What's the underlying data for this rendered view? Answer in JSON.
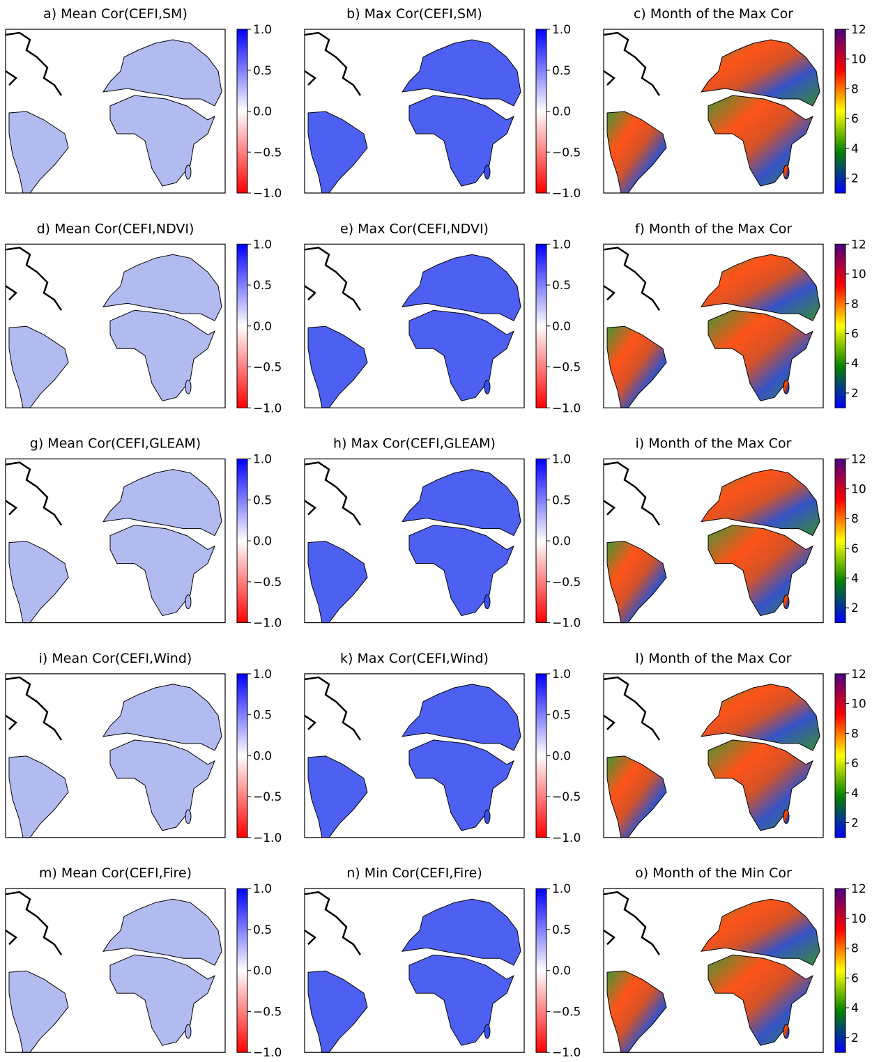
{
  "panels": [
    {
      "title": "a) Mean Cor(CEFI,SM)",
      "colorbar": {
        "clim": [
          -1,
          1
        ],
        "colors": [
          "#ff0000",
          "#ffffff",
          "#0000ff"
        ],
        "ticks": [
          {
            "value": -1,
            "label": "−1.0"
          },
          {
            "value": -0.5,
            "label": "−0.5"
          },
          {
            "value": 0,
            "label": "0.0"
          },
          {
            "value": 0.5,
            "label": "0.5"
          },
          {
            "value": 1,
            "label": "1.0"
          }
        ]
      }
    },
    {
      "title": "b) Max Cor(CEFI,SM)",
      "colorbar": {
        "clim": [
          -1,
          1
        ],
        "colors": [
          "#ff0000",
          "#ffffff",
          "#0000ff"
        ],
        "ticks": [
          {
            "value": -1,
            "label": "−1.0"
          },
          {
            "value": -0.5,
            "label": "−0.5"
          },
          {
            "value": 0,
            "label": "0.0"
          },
          {
            "value": 0.5,
            "label": "0.5"
          },
          {
            "value": 1,
            "label": "1.0"
          }
        ]
      }
    },
    {
      "title": "c) Month of the Max Cor",
      "colorbar": {
        "clim": [
          1,
          12
        ],
        "colors": [
          "#0000ff",
          "#008000",
          "#ffff00",
          "#ff0000",
          "#4b0082"
        ],
        "ticks": [
          2,
          4,
          6,
          8,
          10,
          12
        ]
      }
    },
    {
      "title": "d) Mean Cor(CEFI,NDVI)",
      "colorbar": {
        "clim": [
          -1,
          1
        ],
        "colors": [
          "#ff0000",
          "#ffffff",
          "#0000ff"
        ],
        "ticks": [
          {
            "value": -1,
            "label": "−1.0"
          },
          {
            "value": -0.5,
            "label": "−0.5"
          },
          {
            "value": 0,
            "label": "0.0"
          },
          {
            "value": 0.5,
            "label": "0.5"
          },
          {
            "value": 1,
            "label": "1.0"
          }
        ]
      }
    },
    {
      "title": "e) Max Cor(CEFI,NDVI)",
      "colorbar": {
        "clim": [
          -1,
          1
        ],
        "colors": [
          "#ff0000",
          "#ffffff",
          "#0000ff"
        ],
        "ticks": [
          {
            "value": -1,
            "label": "−1.0"
          },
          {
            "value": -0.5,
            "label": "−0.5"
          },
          {
            "value": 0,
            "label": "0.0"
          },
          {
            "value": 0.5,
            "label": "0.5"
          },
          {
            "value": 1,
            "label": "1.0"
          }
        ]
      }
    },
    {
      "title": "f) Month of the Max Cor",
      "colorbar": {
        "clim": [
          1,
          12
        ],
        "colors": [
          "#0000ff",
          "#008000",
          "#ffff00",
          "#ff0000",
          "#4b0082"
        ],
        "ticks": [
          2,
          4,
          6,
          8,
          10,
          12
        ]
      }
    },
    {
      "title": "g) Mean Cor(CEFI,GLEAM)",
      "colorbar": {
        "clim": [
          -1,
          1
        ],
        "colors": [
          "#ff0000",
          "#ffffff",
          "#0000ff"
        ],
        "ticks": [
          {
            "value": -1,
            "label": "−1.0"
          },
          {
            "value": -0.5,
            "label": "−0.5"
          },
          {
            "value": 0,
            "label": "0.0"
          },
          {
            "value": 0.5,
            "label": "0.5"
          },
          {
            "value": 1,
            "label": "1.0"
          }
        ]
      }
    },
    {
      "title": "h) Max Cor(CEFI,GLEAM)",
      "colorbar": {
        "clim": [
          -1,
          1
        ],
        "colors": [
          "#ff0000",
          "#ffffff",
          "#0000ff"
        ],
        "ticks": [
          {
            "value": -1,
            "label": "−1.0"
          },
          {
            "value": -0.5,
            "label": "−0.5"
          },
          {
            "value": 0,
            "label": "0.0"
          },
          {
            "value": 0.5,
            "label": "0.5"
          },
          {
            "value": 1,
            "label": "1.0"
          }
        ]
      }
    },
    {
      "title": "i) Month of the Max Cor",
      "colorbar": {
        "clim": [
          1,
          12
        ],
        "colors": [
          "#0000ff",
          "#008000",
          "#ffff00",
          "#ff0000",
          "#4b0082"
        ],
        "ticks": [
          2,
          4,
          6,
          8,
          10,
          12
        ]
      }
    },
    {
      "title": "i) Mean Cor(CEFI,Wind)",
      "colorbar": {
        "clim": [
          -1,
          1
        ],
        "colors": [
          "#ff0000",
          "#ffffff",
          "#0000ff"
        ],
        "ticks": [
          {
            "value": -1,
            "label": "−1.0"
          },
          {
            "value": -0.5,
            "label": "−0.5"
          },
          {
            "value": 0,
            "label": "0.0"
          },
          {
            "value": 0.5,
            "label": "0.5"
          },
          {
            "value": 1,
            "label": "1.0"
          }
        ]
      }
    },
    {
      "title": "k) Max Cor(CEFI,Wind)",
      "colorbar": {
        "clim": [
          -1,
          1
        ],
        "colors": [
          "#ff0000",
          "#ffffff",
          "#0000ff"
        ],
        "ticks": [
          {
            "value": -1,
            "label": "−1.0"
          },
          {
            "value": -0.5,
            "label": "−0.5"
          },
          {
            "value": 0,
            "label": "0.0"
          },
          {
            "value": 0.5,
            "label": "0.5"
          },
          {
            "value": 1,
            "label": "1.0"
          }
        ]
      }
    },
    {
      "title": "l) Month of the Max Cor",
      "colorbar": {
        "clim": [
          1,
          12
        ],
        "colors": [
          "#0000ff",
          "#008000",
          "#ffff00",
          "#ff0000",
          "#4b0082"
        ],
        "ticks": [
          2,
          4,
          6,
          8,
          10,
          12
        ]
      }
    },
    {
      "title": "m) Mean Cor(CEFI,Fire)",
      "colorbar": {
        "clim": [
          -1,
          1
        ],
        "colors": [
          "#ff0000",
          "#ffffff",
          "#0000ff"
        ],
        "ticks": [
          {
            "value": -1,
            "label": "−1.0"
          },
          {
            "value": -0.5,
            "label": "−0.5"
          },
          {
            "value": 0,
            "label": "0.0"
          },
          {
            "value": 0.5,
            "label": "0.5"
          },
          {
            "value": 1,
            "label": "1.0"
          }
        ]
      }
    },
    {
      "title": "n) Min Cor(CEFI,Fire)",
      "colorbar": {
        "clim": [
          -1,
          1
        ],
        "colors": [
          "#ff0000",
          "#ffffff",
          "#0000ff"
        ],
        "ticks": [
          {
            "value": -1,
            "label": "−1.0"
          },
          {
            "value": -0.5,
            "label": "−0.5"
          },
          {
            "value": 0,
            "label": "0.0"
          },
          {
            "value": 0.5,
            "label": "0.5"
          },
          {
            "value": 1,
            "label": "1.0"
          }
        ]
      }
    },
    {
      "title": "o) Month of the Min Cor",
      "colorbar": {
        "clim": [
          1,
          12
        ],
        "colors": [
          "#0000ff",
          "#008000",
          "#ffff00",
          "#ff0000",
          "#4b0082"
        ],
        "ticks": [
          2,
          4,
          6,
          8,
          10,
          12
        ]
      }
    }
  ]
}
